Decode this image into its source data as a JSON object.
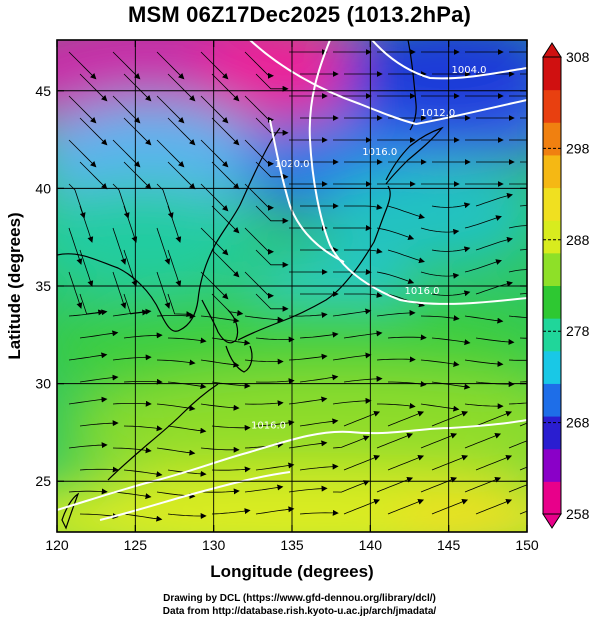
{
  "title": "MSM 06Z17Dec2025 (1013.2hPa)",
  "chart_data": {
    "type": "map",
    "xlabel": "Longitude (degrees)",
    "ylabel": "Latitude  (degrees)",
    "xlim": [
      120,
      150
    ],
    "ylim": [
      22.4,
      47.6
    ],
    "x_ticks": [
      120,
      125,
      130,
      135,
      140,
      145,
      150
    ],
    "y_ticks": [
      25,
      30,
      35,
      40,
      45
    ],
    "colorbar": {
      "min": 258,
      "max": 308,
      "ticks": [
        258,
        268,
        278,
        288,
        298,
        308
      ],
      "colors": [
        "#e8008a",
        "#8a00c8",
        "#2a1ed0",
        "#1e6ee8",
        "#19c8e6",
        "#20d69a",
        "#2ec832",
        "#8ee028",
        "#d8ec1e",
        "#f0e020",
        "#f5b814",
        "#f08010",
        "#e84010",
        "#d01010"
      ]
    },
    "contours": [
      {
        "label": "1004.0",
        "lon": 146.3,
        "lat": 46.0
      },
      {
        "label": "1012.0",
        "lon": 144.3,
        "lat": 43.8
      },
      {
        "label": "1016.0",
        "lon": 140.6,
        "lat": 41.8
      },
      {
        "label": "1020.0",
        "lon": 135.0,
        "lat": 41.2
      },
      {
        "label": "1016.0",
        "lon": 143.3,
        "lat": 34.7
      },
      {
        "label": "1016.0",
        "lon": 133.5,
        "lat": 27.8
      }
    ]
  },
  "credits": {
    "line1": "Drawing by DCL (https://www.gfd-dennou.org/library/dcl/)",
    "line2": "Data from http://database.rish.kyoto-u.ac.jp/arch/jmadata/"
  }
}
